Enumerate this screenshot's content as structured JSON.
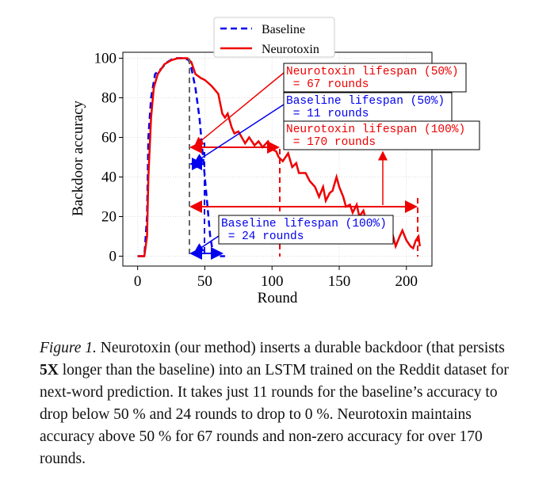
{
  "chart_data": {
    "type": "line",
    "x_label": "Round",
    "y_label": "Backdoor accuracy",
    "xlim": [
      -11,
      219
    ],
    "ylim": [
      -5,
      103
    ],
    "xticks": [
      0,
      50,
      100,
      150,
      200
    ],
    "yticks": [
      0,
      20,
      40,
      60,
      80,
      100
    ],
    "grid": true,
    "legend": "top",
    "series": [
      {
        "name": "Baseline",
        "color": "#0000ee",
        "dash": true,
        "x": [
          0,
          5,
          7,
          8,
          10,
          13,
          18,
          22,
          27,
          35,
          38,
          40,
          43,
          46,
          48,
          50,
          52,
          54,
          56,
          58,
          65
        ],
        "values": [
          0,
          0,
          20,
          60,
          80,
          92,
          95,
          98,
          100,
          100,
          99,
          95,
          85,
          70,
          55,
          40,
          25,
          10,
          2,
          0,
          0
        ]
      },
      {
        "name": "Neurotoxin",
        "color": "#ee0000",
        "dash": false,
        "x": [
          0,
          5,
          7,
          8,
          10,
          12,
          15,
          20,
          25,
          30,
          37,
          40,
          43,
          47,
          50,
          55,
          60,
          63,
          65,
          67,
          70,
          72,
          75,
          80,
          83,
          87,
          90,
          93,
          97,
          100,
          103,
          105,
          108,
          112,
          115,
          118,
          120,
          125,
          128,
          132,
          135,
          138,
          140,
          143,
          145,
          148,
          150,
          153,
          155,
          158,
          160,
          163,
          165,
          168,
          170,
          175,
          180,
          183,
          186,
          189,
          192,
          195,
          197,
          200,
          203,
          205,
          207,
          209,
          210
        ],
        "values": [
          0,
          0,
          10,
          40,
          70,
          85,
          92,
          97,
          99,
          100,
          100,
          98,
          92,
          90,
          89,
          86,
          82,
          72,
          70,
          72,
          65,
          62,
          63,
          57,
          60,
          56,
          58,
          55,
          58,
          54,
          53,
          50,
          48,
          52,
          45,
          47,
          42,
          42,
          38,
          35,
          30,
          35,
          28,
          32,
          33,
          40,
          35,
          30,
          25,
          26,
          22,
          26,
          20,
          23,
          18,
          20,
          15,
          12,
          18,
          13,
          5,
          10,
          13,
          8,
          5,
          4,
          8,
          10,
          5
        ]
      }
    ],
    "annotations": [
      {
        "lines": [
          "Neurotoxin lifespan (50%)",
          " = 67 rounds"
        ],
        "color": "#ee0000"
      },
      {
        "lines": [
          "Baseline lifespan (50%)",
          " = 11 rounds"
        ],
        "color": "#0000ee"
      },
      {
        "lines": [
          "Neurotoxin lifespan (100%)",
          " = 170 rounds"
        ],
        "color": "#ee0000"
      },
      {
        "lines": [
          "Baseline lifespan (100%)",
          " = 24 rounds"
        ],
        "color": "#0000ee"
      }
    ]
  },
  "caption": {
    "label": "Figure 1.",
    "before": " Neurotoxin (our method) inserts a durable backdoor (that persists ",
    "bold": "5X",
    "after": " longer than the baseline) into an LSTM trained on the Reddit dataset for next-word prediction. It takes just 11 rounds for the baseline’s accuracy to drop below 50 % and 24 rounds to drop to 0 %. Neurotoxin maintains accuracy above 50 % for 67 rounds and non-zero accuracy for over 170 rounds."
  }
}
